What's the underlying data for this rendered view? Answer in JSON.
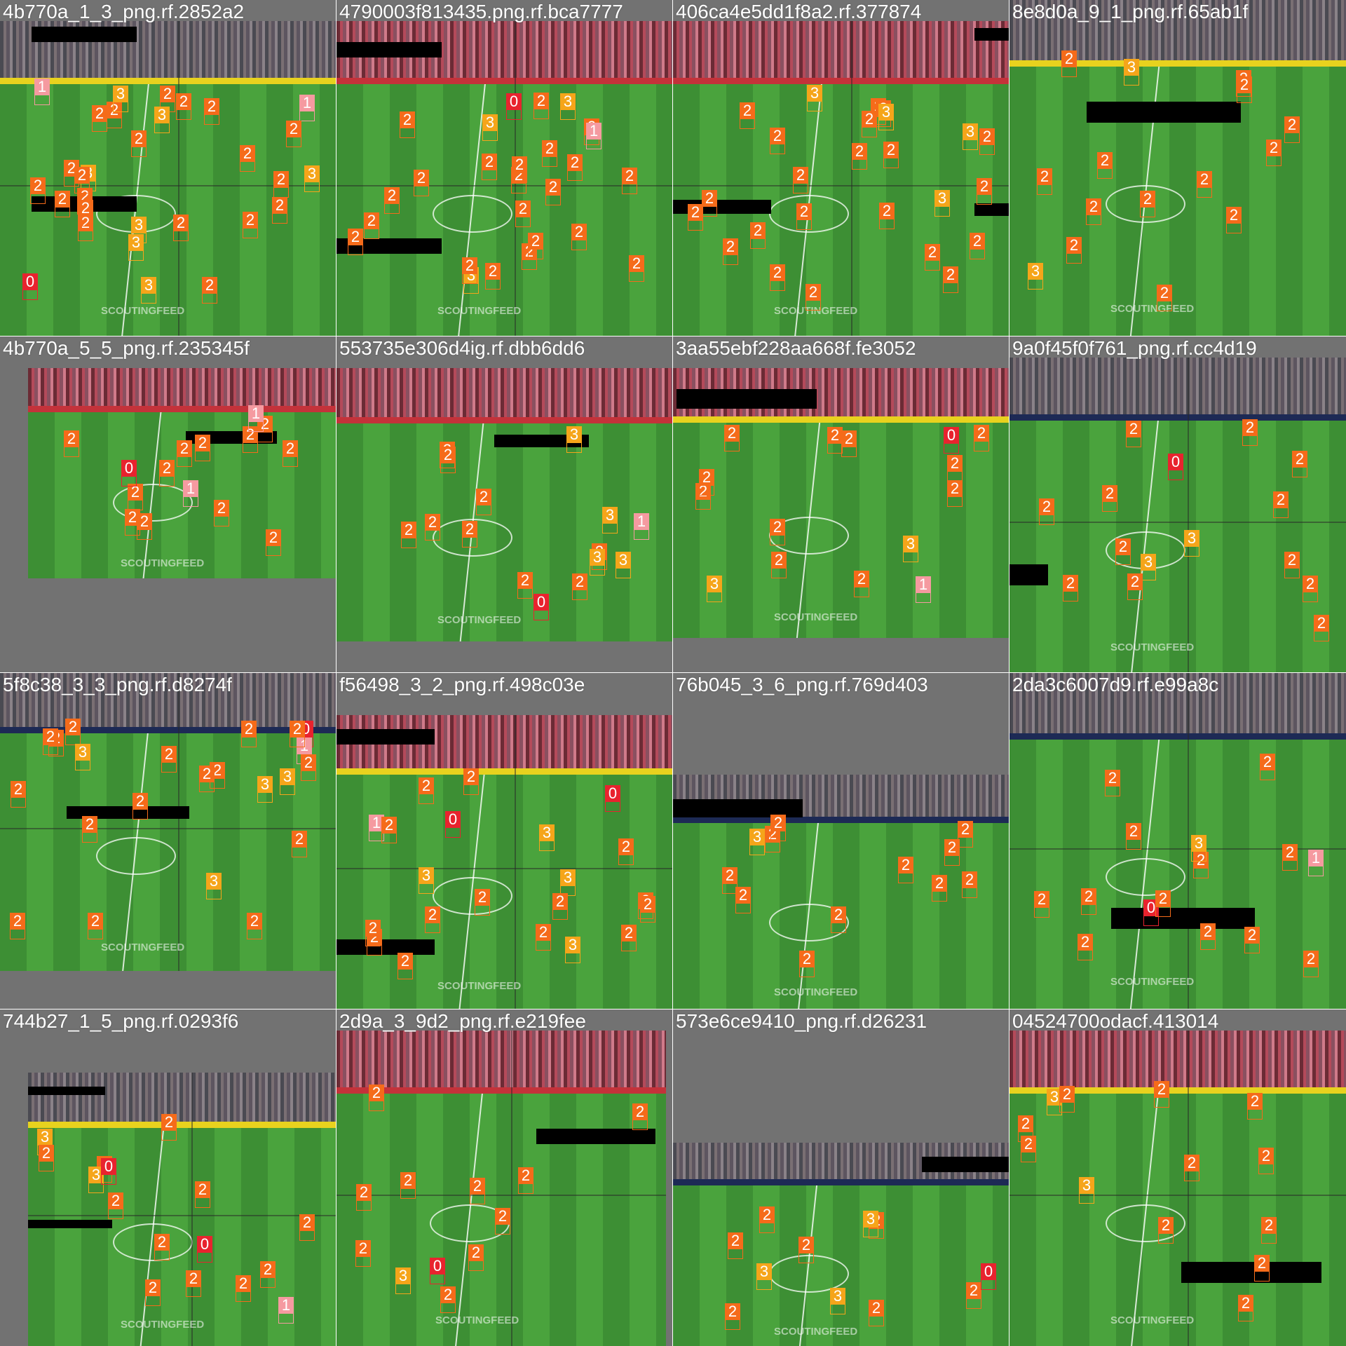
{
  "mosaic": {
    "description_free": true,
    "class_colors": {
      "0": "#e8232e",
      "1": "#f59aa0",
      "2": "#f56b1a",
      "3": "#f5a51a"
    },
    "watermark_text": "SCOUTINGFEED",
    "tiles": [
      {
        "title": "4b770a_1_3_png.rf.2852a2",
        "labels": [
          "2",
          "3",
          "2",
          "2",
          "2",
          "2",
          "2",
          "2",
          "2",
          "3",
          "0",
          "1",
          "3",
          "2",
          "2",
          "2",
          "3",
          "2",
          "2",
          "2",
          "3",
          "2",
          "2",
          "2",
          "3",
          "2",
          "2",
          "1",
          "3",
          "2"
        ]
      },
      {
        "title": "4790003f813435.png.rf.bca7777",
        "labels": [
          "3",
          "2",
          "2",
          "2",
          "2",
          "2",
          "2",
          "0",
          "2",
          "2",
          "2",
          "2",
          "3",
          "1",
          "2",
          "2",
          "2",
          "2",
          "2",
          "2",
          "3",
          "2",
          "2",
          "2",
          "2",
          "2"
        ]
      },
      {
        "title": "406ca4e5dd1f8a2.rf.377874",
        "labels": [
          "2",
          "2",
          "2",
          "2",
          "2",
          "2",
          "2",
          "3",
          "2",
          "2",
          "2",
          "2",
          "2",
          "3",
          "2",
          "2",
          "2",
          "3",
          "2",
          "2",
          "2",
          "2",
          "2",
          "2",
          "3"
        ]
      },
      {
        "title": "8e8d0a_9_1_png.rf.65ab1f",
        "labels": [
          "2",
          "2",
          "2",
          "2",
          "3",
          "2",
          "2",
          "2",
          "2",
          "2",
          "2",
          "2",
          "2",
          "3",
          "2"
        ]
      },
      {
        "title": "4b770a_5_5_png.rf.235345f",
        "labels": [
          "2",
          "2",
          "2",
          "2",
          "2",
          "2",
          "2",
          "2",
          "2",
          "2",
          "1",
          "0",
          "1",
          "2",
          "2"
        ]
      },
      {
        "title": "553735e306d4ig.rf.dbb6dd6",
        "labels": [
          "3",
          "2",
          "2",
          "2",
          "2",
          "3",
          "0",
          "2",
          "2",
          "2",
          "1",
          "3",
          "3",
          "2",
          "2"
        ]
      },
      {
        "title": "3aa55ebf228aa668f.fe3052",
        "labels": [
          "2",
          "2",
          "2",
          "2",
          "2",
          "0",
          "3",
          "2",
          "2",
          "2",
          "2",
          "2",
          "3",
          "2",
          "1"
        ]
      },
      {
        "title": "9a0f45f0f761_png.rf.cc4d19",
        "labels": [
          "3",
          "2",
          "2",
          "2",
          "2",
          "2",
          "2",
          "2",
          "2",
          "3",
          "2",
          "2",
          "2",
          "0",
          "2"
        ]
      },
      {
        "title": "5f8c38_3_3_png.rf.d8274f",
        "labels": [
          "2",
          "0",
          "2",
          "2",
          "2",
          "3",
          "1",
          "2",
          "2",
          "2",
          "2",
          "3",
          "2",
          "2",
          "2",
          "2",
          "3",
          "2",
          "2",
          "2",
          "3",
          "2"
        ]
      },
      {
        "title": "f56498_3_2_png.rf.498c03e",
        "labels": [
          "1",
          "2",
          "2",
          "2",
          "3",
          "2",
          "2",
          "2",
          "0",
          "3",
          "2",
          "2",
          "2",
          "3",
          "2",
          "2",
          "2",
          "3",
          "2",
          "2",
          "0"
        ]
      },
      {
        "title": "76b045_3_6_png.rf.769d403",
        "labels": [
          "2",
          "2",
          "2",
          "2",
          "3",
          "2",
          "2",
          "2",
          "2",
          "2",
          "2",
          "2"
        ]
      },
      {
        "title": "2da3c6007d9.rf.e99a8c",
        "labels": [
          "2",
          "2",
          "2",
          "2",
          "2",
          "2",
          "2",
          "2",
          "3",
          "2",
          "2",
          "0",
          "2",
          "1",
          "2"
        ]
      },
      {
        "title": "744b27_1_5_png.rf.0293f6",
        "labels": [
          "0",
          "2",
          "2",
          "2",
          "3",
          "2",
          "2",
          "1",
          "2",
          "2",
          "0",
          "3",
          "2",
          "2",
          "2",
          "2"
        ]
      },
      {
        "title": "2d9a_3_9d2_png.rf.e219fee",
        "labels": [
          "2",
          "2",
          "2",
          "2",
          "3",
          "2",
          "2",
          "2",
          "0",
          "2",
          "2",
          "2"
        ]
      },
      {
        "title": "573e6ce9410_png.rf.d26231",
        "labels": [
          "2",
          "3",
          "2",
          "2",
          "2",
          "0",
          "2",
          "3",
          "2",
          "2",
          "3"
        ]
      },
      {
        "title": "04524700odacf.413014",
        "labels": [
          "3",
          "2",
          "2",
          "2",
          "2",
          "2",
          "2",
          "2",
          "2",
          "3",
          "2",
          "2",
          "2"
        ]
      }
    ]
  }
}
